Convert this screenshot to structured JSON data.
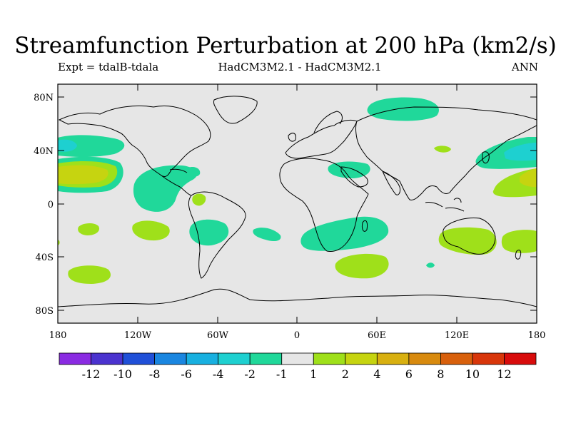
{
  "title": "Streamfunction Perturbation at 200 hPa (km2/s)",
  "experiment": "Expt = tdalB-tdala",
  "model": "HadCM3M2.1 - HadCM3M2.1",
  "season": "ANN",
  "y_axis_labels": [
    "80N",
    "40N",
    "0",
    "40S",
    "80S"
  ],
  "x_axis_labels": [
    "180",
    "120W",
    "60W",
    "0",
    "60E",
    "120E",
    "180"
  ],
  "colorbar": {
    "labels": [
      "-12",
      "-10",
      "-8",
      "-6",
      "-4",
      "-2",
      "-1",
      "1",
      "2",
      "4",
      "6",
      "8",
      "10",
      "12"
    ],
    "colors": [
      "#8a2be2",
      "#4b33cf",
      "#2050d8",
      "#1a86e0",
      "#18b0e0",
      "#1ed0d0",
      "#20d89a",
      "#e6e6e6",
      "#9fe01a",
      "#c6d410",
      "#d8b010",
      "#d88a0e",
      "#d8600c",
      "#d8360a",
      "#d80c0c"
    ]
  },
  "colors": {
    "ocean_land": "#e6e6e6",
    "neg1": "#20d89a",
    "neg2": "#1ed0d0",
    "neg4": "#18b0e0",
    "pos1": "#9fe01a",
    "pos2": "#c6d410",
    "pos4": "#d8b010"
  }
}
